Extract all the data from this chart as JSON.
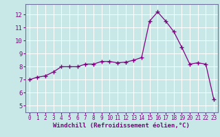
{
  "x": [
    0,
    1,
    2,
    3,
    4,
    5,
    6,
    7,
    8,
    9,
    10,
    11,
    12,
    13,
    14,
    15,
    16,
    17,
    18,
    19,
    20,
    21,
    22,
    23
  ],
  "y": [
    7.0,
    7.2,
    7.3,
    7.6,
    8.0,
    8.0,
    8.0,
    8.2,
    8.2,
    8.4,
    8.4,
    8.3,
    8.35,
    8.5,
    8.7,
    11.5,
    12.2,
    11.5,
    10.7,
    9.5,
    8.2,
    8.3,
    8.2,
    5.5
  ],
  "xlabel": "Windchill (Refroidissement éolien,°C)",
  "xlim": [
    -0.5,
    23.5
  ],
  "ylim": [
    4.5,
    12.8
  ],
  "yticks": [
    5,
    6,
    7,
    8,
    9,
    10,
    11,
    12
  ],
  "xticks": [
    0,
    1,
    2,
    3,
    4,
    5,
    6,
    7,
    8,
    9,
    10,
    11,
    12,
    13,
    14,
    15,
    16,
    17,
    18,
    19,
    20,
    21,
    22,
    23
  ],
  "line_color": "#800080",
  "marker": "+",
  "bg_color": "#c8e8e8",
  "grid_color": "#ffffff",
  "tick_color": "#800080",
  "label_color": "#800080",
  "spine_color": "#7070a0",
  "xfontsize": 5.5,
  "yfontsize": 6.5,
  "xlabel_fontsize": 6.5
}
